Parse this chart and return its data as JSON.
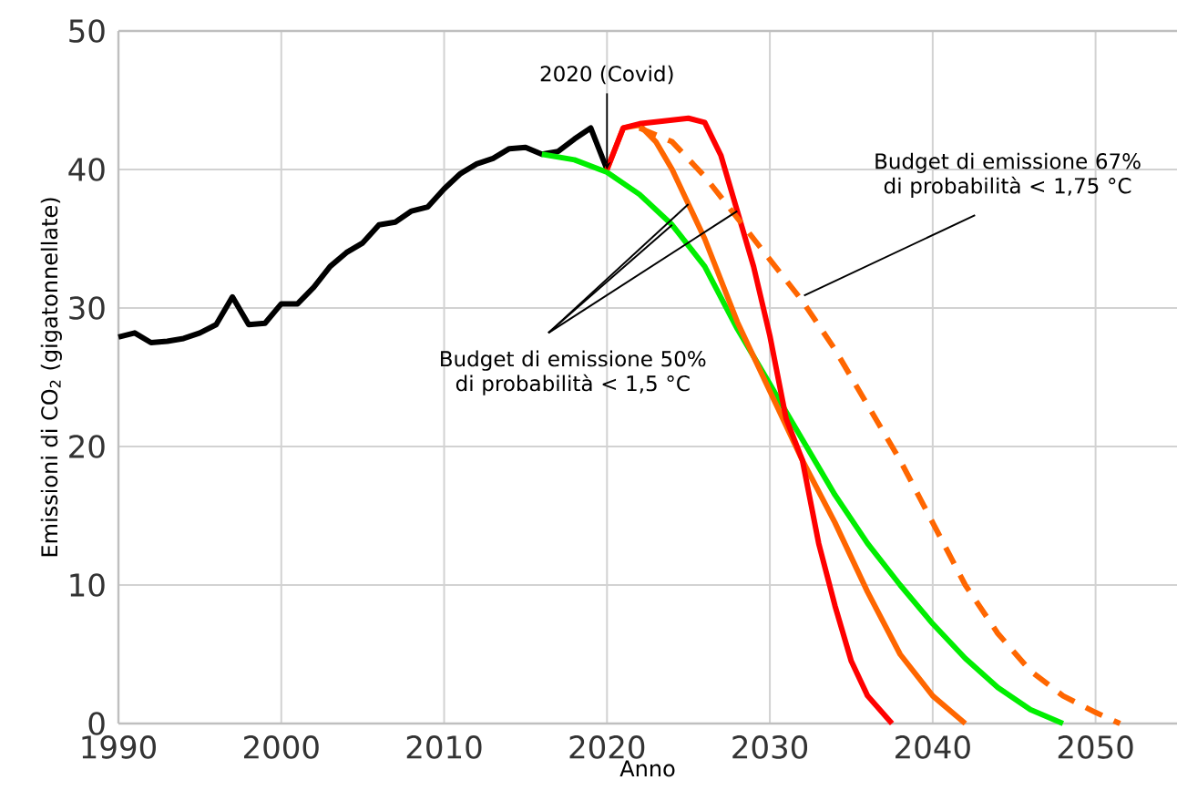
{
  "chart_data": {
    "type": "line",
    "xlabel": "Anno",
    "ylabel": "Emissioni di CO$_{2}$ (gigatonnellate)",
    "xlim": [
      1990,
      2055
    ],
    "ylim": [
      0,
      50
    ],
    "xticks": [
      1990,
      2000,
      2010,
      2020,
      2030,
      2040,
      2050
    ],
    "yticks": [
      0,
      10,
      20,
      30,
      40,
      50
    ],
    "grid": true,
    "marker": "none",
    "series": [
      {
        "color": "#000000",
        "x": [
          1990,
          1991,
          1992,
          1993,
          1994,
          1995,
          1996,
          1997,
          1998,
          1999,
          2000,
          2001,
          2002,
          2003,
          2004,
          2005,
          2006,
          2007,
          2008,
          2009,
          2010,
          2011,
          2012,
          2013,
          2014,
          2015,
          2016,
          2017,
          2018,
          2019,
          2020
        ],
        "values": [
          27.9,
          28.2,
          27.5,
          27.6,
          27.8,
          28.2,
          28.8,
          30.8,
          28.8,
          28.9,
          30.3,
          30.3,
          31.5,
          33,
          34,
          34.7,
          36,
          36.2,
          37,
          37.3,
          38.6,
          39.7,
          40.4,
          40.8,
          41.5,
          41.6,
          41.1,
          41.3,
          42.2,
          43,
          40
        ]
      },
      {
        "color": "#00ee00",
        "x": [
          2016,
          2018,
          2020,
          2022,
          2024,
          2026,
          2028,
          2030,
          2032,
          2034,
          2036,
          2038,
          2040,
          2042,
          2044,
          2046,
          2048
        ],
        "values": [
          41.1,
          40.7,
          39.8,
          38.2,
          36,
          33,
          28.5,
          24.5,
          20.5,
          16.5,
          13,
          10,
          7.2,
          4.7,
          2.6,
          1,
          0
        ]
      },
      {
        "color": "#ff6600",
        "x": [
          2020,
          2021,
          2022,
          2023,
          2024,
          2025,
          2026,
          2027,
          2028,
          2030,
          2032,
          2034,
          2036,
          2038,
          2040,
          2042
        ],
        "values": [
          40,
          43,
          43.2,
          42,
          40,
          37.5,
          35,
          32,
          29,
          24,
          19,
          14.5,
          9.5,
          5,
          2,
          0
        ]
      },
      {
        "color": "#ff0000",
        "x": [
          2020,
          2021,
          2022,
          2025,
          2026,
          2027,
          2028,
          2029,
          2030,
          2031,
          2032,
          2033,
          2034,
          2035,
          2036,
          2037.5
        ],
        "values": [
          40,
          43,
          43.3,
          43.7,
          43.4,
          41,
          37,
          33,
          28,
          22,
          19,
          13,
          8.5,
          4.5,
          2,
          0
        ]
      },
      {
        "color": "#ff6600",
        "line_style": "dashed",
        "x": [
          2022,
          2024,
          2026,
          2028,
          2030,
          2032,
          2034,
          2036,
          2038,
          2040,
          2042,
          2044,
          2046,
          2048,
          2050,
          2051.5
        ],
        "values": [
          43,
          42,
          39.5,
          36.5,
          33.5,
          30.5,
          27,
          23,
          19,
          14.5,
          10,
          6.5,
          3.8,
          2,
          0.8,
          0
        ]
      }
    ],
    "annotations": [
      {
        "text": "2020 (Covid)",
        "x": 2020,
        "y": 40
      },
      {
        "text": "Budget di emissione 50% di probabilità < 1,5 °C",
        "x": 2024,
        "y": 36
      },
      {
        "text": "Budget di emissione 67% di probabilità < 1,75 °C",
        "x": 2032.1,
        "y": 30.9
      }
    ]
  }
}
